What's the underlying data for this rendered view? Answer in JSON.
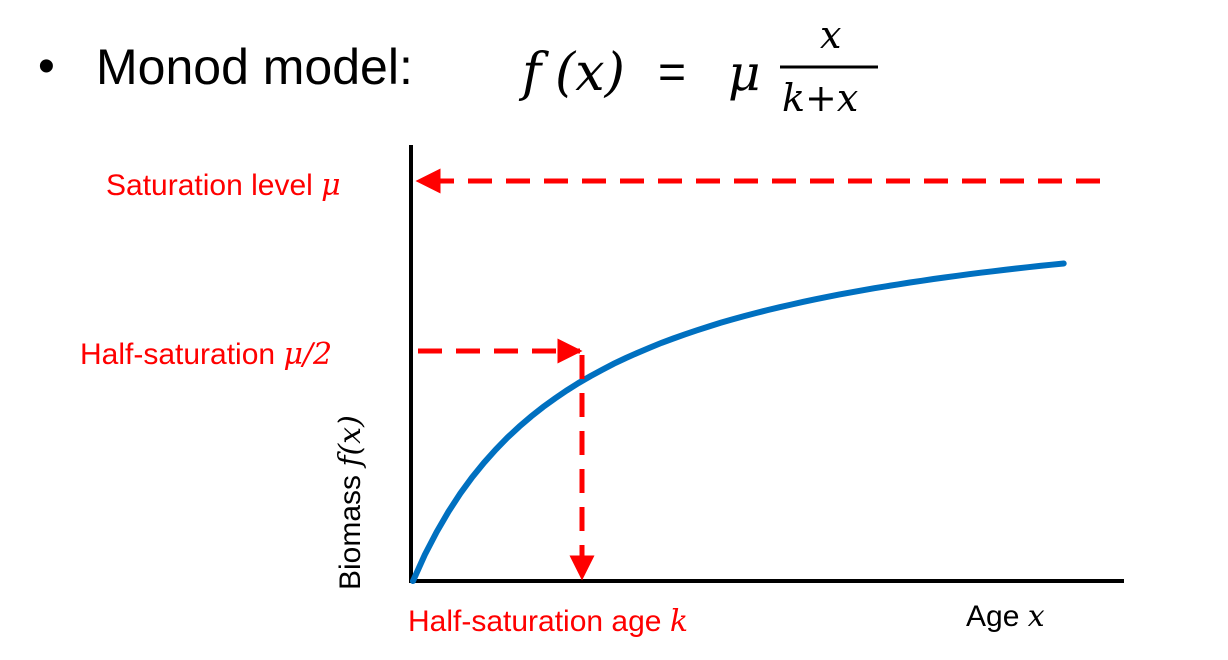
{
  "title": {
    "bullet": "•",
    "text": "Monod model: ",
    "formula_lhs": "f",
    "formula_arg": "(x)",
    "formula_eq": "=",
    "formula_mu": "μ",
    "frac_num": "x",
    "frac_den": "k+x"
  },
  "labels": {
    "saturation_text": "Saturation level ",
    "saturation_sym": "μ",
    "half_text": "Half-saturation ",
    "half_sym": "μ/2",
    "age_k_text": "Half-saturation age ",
    "age_k_sym": "k",
    "x_axis_text": "Age ",
    "x_axis_sym": "x",
    "y_axis_text": "Biomass ",
    "y_axis_sym": "f(x)"
  },
  "colors": {
    "curve": "#0070C0",
    "annotation": "#FF0000",
    "axis": "#000000"
  },
  "chart_data": {
    "type": "line",
    "series": [
      {
        "function": "mu * x / (k + x)",
        "mu": 1,
        "k": 1,
        "x_range": [
          0,
          14
        ]
      }
    ],
    "annotations": [
      {
        "type": "hline-dashed",
        "y": 1,
        "label": "Saturation level μ"
      },
      {
        "type": "hline-dashed",
        "y": 0.5,
        "label": "Half-saturation μ/2"
      },
      {
        "type": "vline-dashed",
        "x": 1,
        "label": "Half-saturation age k"
      }
    ],
    "xlabel": "Age x",
    "ylabel": "Biomass f(x)"
  }
}
